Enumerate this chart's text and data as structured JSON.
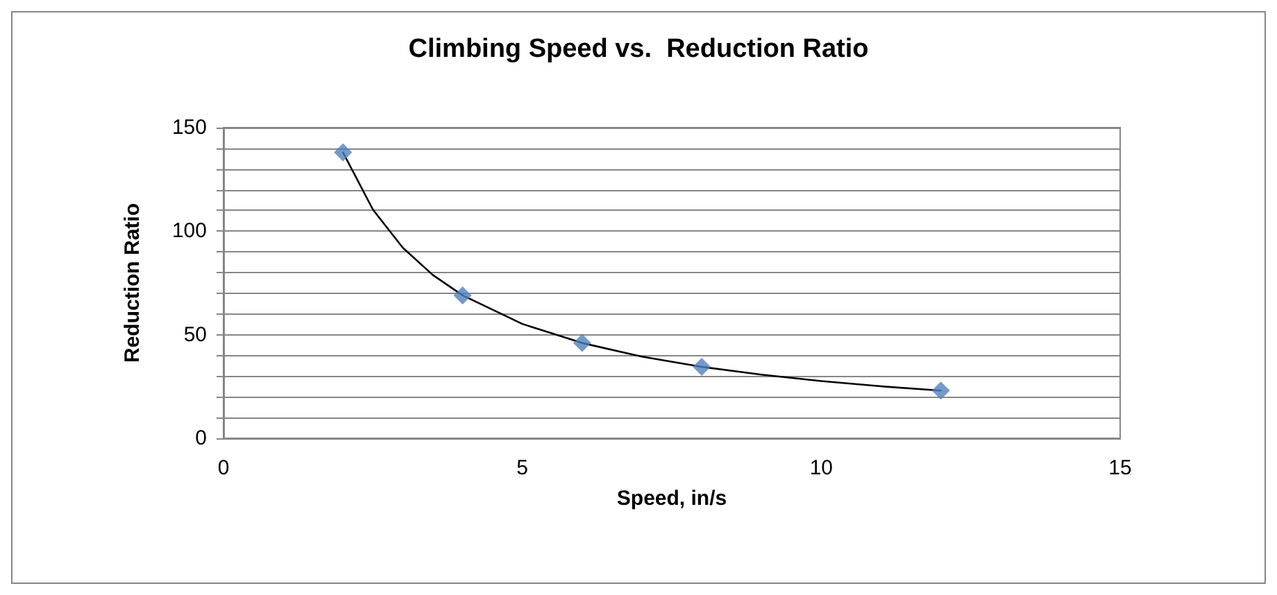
{
  "chart_data": {
    "type": "scatter",
    "title": "Climbing Speed vs.  Reduction Ratio",
    "xlabel": "Speed, in/s",
    "ylabel": "Reduction Ratio",
    "xlim": [
      0,
      15
    ],
    "xticks": [
      0,
      5,
      10,
      15
    ],
    "ylim": [
      0,
      150
    ],
    "yticks": [
      0,
      {
        "value": 10,
        "label": null
      },
      {
        "value": 20,
        "label": null
      },
      {
        "value": 30,
        "label": null
      },
      {
        "value": 40,
        "label": null
      },
      50,
      {
        "value": 60,
        "label": null
      },
      {
        "value": 70,
        "label": null
      },
      {
        "value": 80,
        "label": null
      },
      {
        "value": 90,
        "label": null
      },
      100,
      {
        "value": 110,
        "label": null
      },
      {
        "value": 120,
        "label": null
      },
      {
        "value": 130,
        "label": null
      },
      {
        "value": 140,
        "label": null
      },
      150
    ],
    "grid": "y",
    "marker": "diamond",
    "series": [
      {
        "color": "#4f81bd",
        "x": [
          2,
          4,
          6,
          8,
          12
        ],
        "values": [
          138,
          69,
          46,
          34.5,
          23
        ]
      },
      {
        "type": "line",
        "color": "#000000",
        "marker": "none",
        "line_style": "solid",
        "x": [
          2,
          2.5,
          3,
          3.5,
          4,
          5,
          6,
          7,
          8,
          9,
          10,
          11,
          12
        ],
        "values": [
          138,
          110.4,
          92,
          78.9,
          69,
          55.2,
          46,
          39.4,
          34.5,
          30.7,
          27.6,
          25.1,
          23
        ]
      }
    ]
  }
}
